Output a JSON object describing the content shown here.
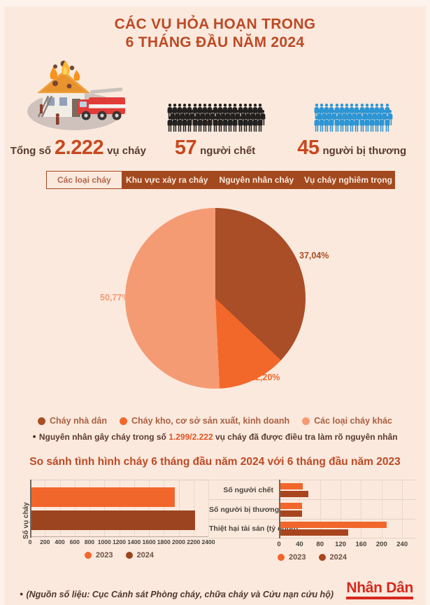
{
  "title": {
    "line1": "CÁC VỤ HỎA HOẠN TRONG",
    "line2": "6 THÁNG ĐẦU NĂM 2024"
  },
  "stats": {
    "fires": {
      "icon": "burning-house-firetruck-illustration",
      "prefix": "Tổng số",
      "value": "2.222",
      "suffix": "vụ cháy"
    },
    "deaths": {
      "icon": "person-icon",
      "count": 57,
      "per_row": 19,
      "color": "#23211f",
      "value": "57",
      "label": "người chết"
    },
    "injured": {
      "icon": "person-icon",
      "count": 45,
      "per_row": 15,
      "color": "#2d95d3",
      "value": "45",
      "label": "người bị thương"
    }
  },
  "tabs": [
    {
      "id": "cac-loai-chay",
      "label": "Các loại cháy",
      "active": true
    },
    {
      "id": "khu-vuc-xay-ra-chay",
      "label": "Khu vực xảy ra cháy",
      "active": false
    },
    {
      "id": "nguyen-nhan-chay",
      "label": "Nguyên nhân cháy",
      "active": false
    },
    {
      "id": "vu-chay-nghiem-trong",
      "label": "Vụ cháy nghiêm trọng",
      "active": false
    }
  ],
  "note": {
    "bullet": "●",
    "prefix": "Nguyên nhân gây cháy trong số ",
    "highlight": "1.299/2.222",
    "suffix": " vụ cháy đã được điều tra làm rõ nguyên nhân"
  },
  "comparison_title": "So sánh tình hình cháy 6 tháng đầu năm 2024 với 6 tháng đầu năm 2023",
  "footer": {
    "bullet": "●",
    "source": "(Nguồn số liệu: Cục Cảnh sát Phòng cháy, chữa cháy và Cứu nạn cứu hộ)",
    "brand": "Nhân Dân"
  },
  "colors": {
    "background": "#fbe9dd",
    "accent_title": "#bc4a26",
    "accent_number": "#c8481e",
    "dark_text": "#5a3a2f",
    "tab_bg": "#a3491f",
    "brand_red": "#d5291d",
    "deaths_icons": "#23211f",
    "injured_icons": "#2d95d3"
  },
  "chart_data": [
    {
      "type": "pie",
      "title": "Các loại cháy",
      "slices": [
        {
          "label": "Cháy nhà dân",
          "value": 37.04,
          "display": "37,04%",
          "color": "#a94e27"
        },
        {
          "label": "Cháy kho, cơ sở sản xuất, kinh doanh",
          "value": 12.2,
          "display": "12,20%",
          "color": "#f1682a"
        },
        {
          "label": "Các loại cháy khác",
          "value": 50.77,
          "display": "50,77%",
          "color": "#f49b74"
        }
      ],
      "start_angle_deg": 0,
      "direction": "clockwise",
      "legend_position": "bottom"
    },
    {
      "type": "bar",
      "orientation": "horizontal",
      "ylabel": "Số vụ cháy",
      "categories": [
        "Số vụ cháy"
      ],
      "series": [
        {
          "name": "2023",
          "color": "#f1662b",
          "values": [
            1951
          ]
        },
        {
          "name": "2024",
          "color": "#9c4420",
          "values": [
            2222
          ]
        }
      ],
      "xlim": [
        0,
        2400
      ],
      "xticks": [
        0,
        200,
        400,
        600,
        800,
        1000,
        1200,
        1400,
        1600,
        1800,
        2000,
        2200,
        2400
      ],
      "grid": true,
      "legend_position": "bottom"
    },
    {
      "type": "bar",
      "orientation": "horizontal",
      "categories": [
        "Số người chết",
        "Số người bị thương",
        "Thiệt hại tài sản (tỷ đồng)"
      ],
      "series": [
        {
          "name": "2023",
          "color": "#f1662b",
          "values": [
            46,
            45,
            210
          ]
        },
        {
          "name": "2024",
          "color": "#a8451f",
          "values": [
            57,
            45,
            135
          ]
        }
      ],
      "xlim": [
        0,
        240
      ],
      "xticks": [
        0,
        40,
        80,
        120,
        160,
        200,
        240
      ],
      "grid": true,
      "legend_position": "bottom"
    }
  ]
}
